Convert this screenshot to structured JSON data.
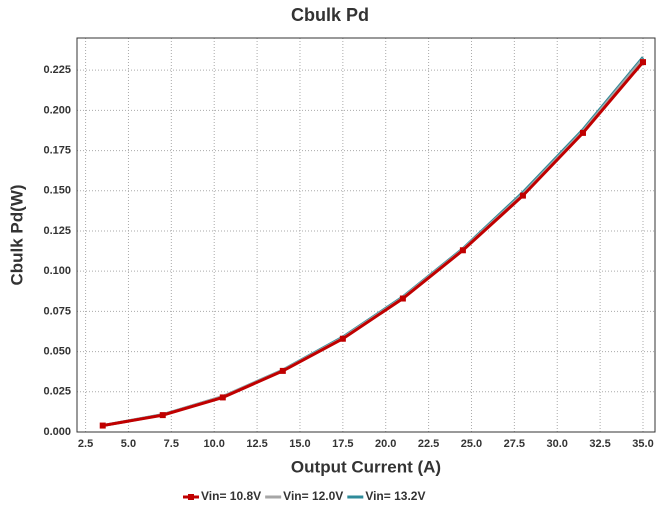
{
  "chart_data": {
    "type": "line",
    "title": "Cbulk Pd",
    "x_label": "Output Current (A)",
    "y_label": "Cbulk Pd(W)",
    "x": [
      3.5,
      7,
      10.5,
      14,
      17.5,
      21,
      24.5,
      28,
      31.5,
      35
    ],
    "series": [
      {
        "name": "Vin= 10.8V",
        "color": "#c00000",
        "values": [
          0.004,
          0.0105,
          0.0215,
          0.038,
          0.058,
          0.083,
          0.113,
          0.147,
          0.186,
          0.23
        ]
      },
      {
        "name": "Vin= 12.0V",
        "color": "#a6a6a6",
        "values": [
          0.004,
          0.0107,
          0.022,
          0.0383,
          0.0585,
          0.0835,
          0.1135,
          0.148,
          0.187,
          0.232
        ]
      },
      {
        "name": "Vin= 13.2V",
        "color": "#2e8b9a",
        "values": [
          0.004,
          0.0108,
          0.022,
          0.0385,
          0.059,
          0.084,
          0.114,
          0.149,
          0.188,
          0.233
        ]
      }
    ],
    "xlim": [
      2.0,
      35.7
    ],
    "xticks": [
      2.5,
      {
        "value": 5,
        "label": "5.0"
      },
      7.5,
      {
        "value": 10,
        "label": "10.0"
      },
      12.5,
      {
        "value": 15,
        "label": "15.0"
      },
      17.5,
      {
        "value": 20,
        "label": "20.0"
      },
      22.5,
      {
        "value": 25,
        "label": "25.0"
      },
      27.5,
      {
        "value": 30,
        "label": "30.0"
      },
      32.5,
      {
        "value": 35,
        "label": "35.0"
      }
    ],
    "ylim": [
      0,
      0.245
    ],
    "yticks": [
      {
        "value": 0,
        "label": "0.000"
      },
      0.025,
      {
        "value": 0.05,
        "label": "0.050"
      },
      0.075,
      {
        "value": 0.1,
        "label": "0.100"
      },
      0.125,
      {
        "value": 0.15,
        "label": "0.150"
      },
      0.175,
      {
        "value": 0.2,
        "label": "0.200"
      },
      0.225
    ],
    "grid": true,
    "legend": "bottom"
  }
}
